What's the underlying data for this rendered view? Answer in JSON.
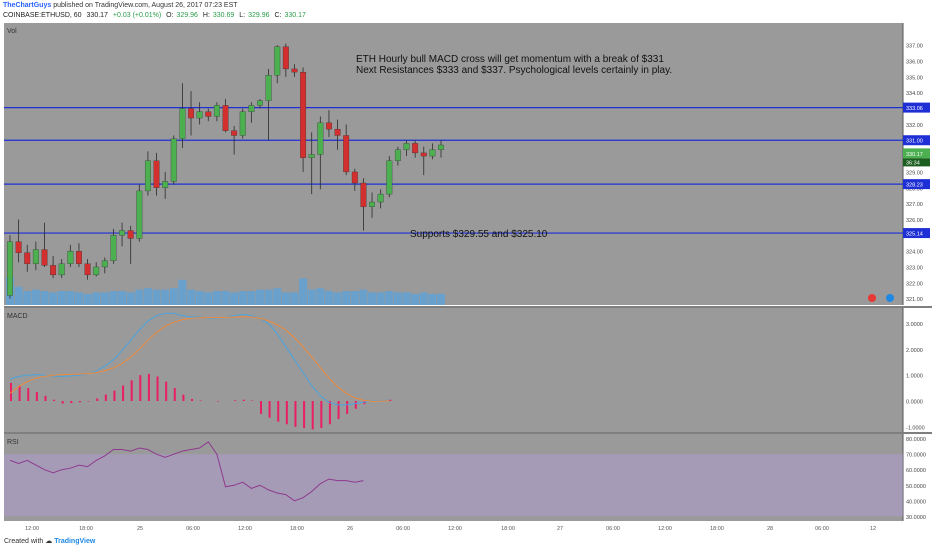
{
  "header": {
    "author": "TheChartGuys",
    "published": "published on TradingView.com, August 26, 2017 07:23 EST",
    "symbol": "COINBASE:ETHUSD, 60",
    "last": "330.17",
    "change": "+0.03 (+0.01%)",
    "open_label": "O:",
    "open": "329.96",
    "high_label": "H:",
    "high": "330.69",
    "low_label": "L:",
    "low": "329.96",
    "close_label": "C:",
    "close": "330.17"
  },
  "footer": {
    "created_with": "Created with",
    "brand": "TradingView"
  },
  "colors": {
    "background": "#9a9a9a",
    "up": "#4caf50",
    "down": "#d32f2f",
    "level_line": "#1f2fd6",
    "macd_line": "#4aa3df",
    "signal_line": "#f08a3a",
    "histogram": "#e91e63",
    "rsi_line": "#8e3a8e",
    "rsi_band": "#b39ddb",
    "volume": "#42a5f5"
  },
  "chart_data": [
    {
      "type": "candlestick",
      "pane": "price",
      "label": "Vol",
      "annotations": [
        "ETH Hourly bull MACD cross will get momentum with a break of $331",
        "Next Resistances $333 and $337.  Psychological levels certainly in play.",
        "Supports $329.55 and $325.10"
      ],
      "ylim": [
        320.6,
        338.4
      ],
      "yticks": [
        "337.00",
        "336.00",
        "335.00",
        "334.00",
        "333.00",
        "332.00",
        "331.00",
        "330.00",
        "329.00",
        "328.00",
        "327.00",
        "326.00",
        "325.00",
        "324.00",
        "323.00",
        "322.00",
        "321.00"
      ],
      "xticks": [
        "12:00",
        "18:00",
        "25",
        "06:00",
        "12:00",
        "18:00",
        "26",
        "06:00",
        "12:00",
        "18:00",
        "27",
        "06:00",
        "12:00",
        "18:00",
        "28",
        "06:00",
        "12"
      ],
      "levels": [
        {
          "value": 333.06,
          "label": "333.06"
        },
        {
          "value": 331.0,
          "label": "331.00"
        },
        {
          "value": 328.23,
          "label": "328.23"
        },
        {
          "value": 325.14,
          "label": "325.14"
        }
      ],
      "last_price": {
        "value": 330.17,
        "label": "330.17",
        "countdown": "36:34"
      },
      "candles": [
        {
          "o": 321.2,
          "h": 325.0,
          "l": 321.0,
          "c": 324.6
        },
        {
          "o": 324.6,
          "h": 326.0,
          "l": 323.3,
          "c": 323.9
        },
        {
          "o": 323.9,
          "h": 324.4,
          "l": 322.7,
          "c": 323.2
        },
        {
          "o": 323.2,
          "h": 324.6,
          "l": 322.8,
          "c": 324.1
        },
        {
          "o": 324.1,
          "h": 325.8,
          "l": 323.0,
          "c": 323.1
        },
        {
          "o": 323.1,
          "h": 323.7,
          "l": 322.3,
          "c": 322.5
        },
        {
          "o": 322.5,
          "h": 323.5,
          "l": 322.3,
          "c": 323.2
        },
        {
          "o": 323.2,
          "h": 324.4,
          "l": 323.0,
          "c": 324.0
        },
        {
          "o": 324.0,
          "h": 324.5,
          "l": 323.0,
          "c": 323.2
        },
        {
          "o": 323.2,
          "h": 323.5,
          "l": 322.2,
          "c": 322.5
        },
        {
          "o": 322.5,
          "h": 323.3,
          "l": 322.4,
          "c": 323.0
        },
        {
          "o": 323.0,
          "h": 323.6,
          "l": 322.6,
          "c": 323.4
        },
        {
          "o": 323.4,
          "h": 325.4,
          "l": 323.2,
          "c": 325.0
        },
        {
          "o": 325.0,
          "h": 325.8,
          "l": 324.3,
          "c": 325.3
        },
        {
          "o": 325.3,
          "h": 325.6,
          "l": 323.2,
          "c": 324.8
        },
        {
          "o": 324.8,
          "h": 328.2,
          "l": 324.6,
          "c": 327.8
        },
        {
          "o": 327.8,
          "h": 330.3,
          "l": 327.5,
          "c": 329.7
        },
        {
          "o": 329.7,
          "h": 330.2,
          "l": 327.5,
          "c": 328.0
        },
        {
          "o": 328.0,
          "h": 329.0,
          "l": 327.3,
          "c": 328.4
        },
        {
          "o": 328.4,
          "h": 331.3,
          "l": 328.2,
          "c": 331.1
        },
        {
          "o": 331.1,
          "h": 334.6,
          "l": 330.5,
          "c": 333.0
        },
        {
          "o": 333.0,
          "h": 334.1,
          "l": 331.3,
          "c": 332.4
        },
        {
          "o": 332.4,
          "h": 333.4,
          "l": 332.0,
          "c": 332.8
        },
        {
          "o": 332.8,
          "h": 333.0,
          "l": 332.2,
          "c": 332.5
        },
        {
          "o": 332.5,
          "h": 333.4,
          "l": 332.2,
          "c": 333.2
        },
        {
          "o": 333.2,
          "h": 333.6,
          "l": 331.5,
          "c": 331.6
        },
        {
          "o": 331.6,
          "h": 331.9,
          "l": 330.1,
          "c": 331.3
        },
        {
          "o": 331.3,
          "h": 333.0,
          "l": 331.1,
          "c": 332.8
        },
        {
          "o": 332.8,
          "h": 333.4,
          "l": 332.1,
          "c": 333.2
        },
        {
          "o": 333.2,
          "h": 333.6,
          "l": 333.0,
          "c": 333.5
        },
        {
          "o": 333.5,
          "h": 335.5,
          "l": 331.0,
          "c": 335.1
        },
        {
          "o": 335.1,
          "h": 337.0,
          "l": 334.6,
          "c": 336.9
        },
        {
          "o": 336.9,
          "h": 337.1,
          "l": 335.0,
          "c": 335.5
        },
        {
          "o": 335.5,
          "h": 335.8,
          "l": 335.0,
          "c": 335.3
        },
        {
          "o": 335.3,
          "h": 335.6,
          "l": 329.0,
          "c": 329.9
        },
        {
          "o": 329.9,
          "h": 331.5,
          "l": 327.6,
          "c": 330.1
        },
        {
          "o": 330.1,
          "h": 332.5,
          "l": 327.9,
          "c": 332.1
        },
        {
          "o": 332.1,
          "h": 332.9,
          "l": 331.2,
          "c": 331.7
        },
        {
          "o": 331.7,
          "h": 332.3,
          "l": 330.4,
          "c": 331.3
        },
        {
          "o": 331.3,
          "h": 332.0,
          "l": 328.8,
          "c": 329.0
        },
        {
          "o": 329.0,
          "h": 329.2,
          "l": 327.8,
          "c": 328.3
        },
        {
          "o": 328.3,
          "h": 328.6,
          "l": 325.3,
          "c": 326.8
        },
        {
          "o": 326.8,
          "h": 327.7,
          "l": 326.1,
          "c": 327.1
        },
        {
          "o": 327.1,
          "h": 327.9,
          "l": 326.7,
          "c": 327.6
        },
        {
          "o": 327.6,
          "h": 330.0,
          "l": 327.4,
          "c": 329.7
        },
        {
          "o": 329.7,
          "h": 330.6,
          "l": 329.4,
          "c": 330.4
        },
        {
          "o": 330.4,
          "h": 331.0,
          "l": 330.0,
          "c": 330.8
        },
        {
          "o": 330.8,
          "h": 331.0,
          "l": 329.9,
          "c": 330.2
        },
        {
          "o": 330.2,
          "h": 330.6,
          "l": 328.8,
          "c": 330.0
        },
        {
          "o": 330.0,
          "h": 330.8,
          "l": 329.8,
          "c": 330.4
        },
        {
          "o": 330.4,
          "h": 331.0,
          "l": 329.9,
          "c": 330.7
        }
      ],
      "volume": [
        1.0,
        0.65,
        0.5,
        0.55,
        0.5,
        0.45,
        0.5,
        0.5,
        0.45,
        0.4,
        0.45,
        0.45,
        0.5,
        0.5,
        0.45,
        0.55,
        0.6,
        0.55,
        0.55,
        0.6,
        0.9,
        0.55,
        0.5,
        0.45,
        0.5,
        0.5,
        0.45,
        0.5,
        0.5,
        0.55,
        0.55,
        0.6,
        0.45,
        0.45,
        0.95,
        0.55,
        0.6,
        0.5,
        0.45,
        0.5,
        0.5,
        0.55,
        0.45,
        0.45,
        0.5,
        0.45,
        0.45,
        0.4,
        0.45,
        0.4,
        0.4
      ]
    },
    {
      "type": "line",
      "pane": "macd",
      "label": "MACD",
      "ylim": [
        -1.2,
        3.6
      ],
      "yticks": [
        "3.0000",
        "2.0000",
        "1.0000",
        "0.0000",
        "-1.0000"
      ],
      "series": [
        {
          "values": [
            0.85,
            0.95,
            1.0,
            1.02,
            1.0,
            0.97,
            0.95,
            0.97,
            1.0,
            1.05,
            1.15,
            1.35,
            1.6,
            1.95,
            2.35,
            2.75,
            3.1,
            3.3,
            3.4,
            3.4,
            3.3,
            3.25,
            3.25,
            3.2,
            3.2,
            3.25,
            3.3,
            3.35,
            3.3,
            3.2,
            3.0,
            2.6,
            2.1,
            1.6,
            1.1,
            0.6,
            0.2,
            -0.05,
            -0.15,
            -0.15,
            -0.1,
            -0.05,
            0.0,
            0.02,
            0.03
          ]
        },
        {
          "values": [
            0.3,
            0.55,
            0.75,
            0.88,
            0.96,
            1.0,
            1.02,
            1.03,
            1.04,
            1.06,
            1.1,
            1.17,
            1.28,
            1.45,
            1.7,
            2.0,
            2.35,
            2.65,
            2.9,
            3.05,
            3.15,
            3.2,
            3.22,
            3.23,
            3.23,
            3.24,
            3.25,
            3.26,
            3.25,
            3.2,
            3.1,
            2.95,
            2.75,
            2.45,
            2.1,
            1.7,
            1.3,
            0.9,
            0.55,
            0.3,
            0.12,
            0.03,
            -0.02,
            0.0,
            0.01
          ]
        },
        {
          "values": [
            0.7,
            0.6,
            0.5,
            0.35,
            0.2,
            0.05,
            -0.1,
            -0.08,
            -0.05,
            -0.02,
            0.1,
            0.25,
            0.4,
            0.6,
            0.8,
            1.0,
            1.05,
            0.95,
            0.75,
            0.5,
            0.25,
            0.08,
            0.02,
            0.0,
            -0.02,
            0.0,
            0.03,
            0.05,
            0.02,
            -0.5,
            -0.65,
            -0.8,
            -0.9,
            -1.0,
            -1.05,
            -1.1,
            -1.05,
            -0.9,
            -0.7,
            -0.5,
            -0.3,
            -0.12,
            -0.02,
            0.02,
            0.05
          ]
        }
      ]
    },
    {
      "type": "line",
      "pane": "rsi",
      "label": "RSI",
      "ylim": [
        27,
        83
      ],
      "yticks": [
        "80.0000",
        "70.0000",
        "60.0000",
        "50.0000",
        "40.0000",
        "30.0000"
      ],
      "band": [
        30,
        70
      ],
      "series": [
        {
          "values": [
            66,
            64,
            66,
            63,
            60,
            58,
            60,
            61,
            63,
            62,
            66,
            69,
            73,
            73,
            72,
            74,
            73,
            70,
            68,
            70,
            72,
            73,
            74,
            78,
            70,
            49,
            50,
            52,
            48,
            50,
            47,
            45,
            44,
            40,
            42,
            46,
            51,
            54,
            53,
            53,
            52,
            53
          ]
        }
      ]
    }
  ]
}
